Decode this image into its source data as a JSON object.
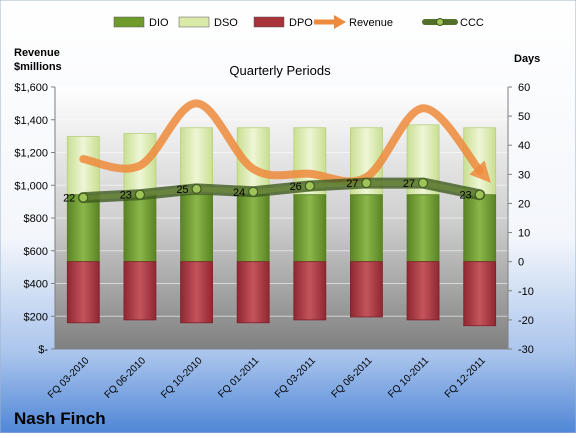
{
  "chart_data": {
    "type": "bar",
    "title": "Quarterly Periods",
    "company": "Nash Finch",
    "left_axis_label": [
      "Revenue",
      "$millions"
    ],
    "right_axis_label": "Days",
    "categories": [
      "FQ 03-2010",
      "FQ 06-2010",
      "FQ 10-2010",
      "FQ 01-2011",
      "FQ 03-2011",
      "FQ 06-2011",
      "FQ 10-2011",
      "FQ 12-2011"
    ],
    "left_axis": {
      "min": 0,
      "max": 1600,
      "step": 200,
      "tick_labels": [
        "$-",
        "$200",
        "$400",
        "$600",
        "$800",
        "$1,000",
        "$1,200",
        "$1,400",
        "$1,600"
      ]
    },
    "right_axis": {
      "min": -30,
      "max": 60,
      "step": 10,
      "tick_labels": [
        "-30",
        "-20",
        "-10",
        "0",
        "10",
        "20",
        "30",
        "40",
        "50",
        "60"
      ]
    },
    "legend_position": "top",
    "legend": [
      {
        "name": "DIO",
        "kind": "bar",
        "color": "#6f9b2d"
      },
      {
        "name": "DSO",
        "kind": "bar",
        "color": "#d9eaa8"
      },
      {
        "name": "DPO",
        "kind": "bar",
        "color": "#a8323a"
      },
      {
        "name": "Revenue",
        "kind": "arrow",
        "color": "#ee8a3c"
      },
      {
        "name": "CCC",
        "kind": "line",
        "color": "#53702a"
      }
    ],
    "series": [
      {
        "name": "DIO",
        "axis": "days",
        "values": [
          23,
          23,
          23,
          23,
          23,
          23,
          23,
          23
        ]
      },
      {
        "name": "DSO",
        "axis": "days",
        "values": [
          20,
          21,
          23,
          23,
          23,
          23,
          24,
          23
        ]
      },
      {
        "name": "DPO",
        "axis": "days",
        "values": [
          -21,
          -20,
          -21,
          -21,
          -20,
          -19,
          -20,
          -22
        ]
      },
      {
        "name": "Revenue",
        "axis": "revenue",
        "values": [
          1160,
          1120,
          1500,
          1100,
          1070,
          1050,
          1470,
          1090
        ]
      },
      {
        "name": "CCC",
        "axis": "days",
        "values": [
          22,
          23,
          25,
          24,
          26,
          27,
          27,
          23
        ],
        "data_labels": [
          "22",
          "23",
          "25",
          "24",
          "26",
          "27",
          "27",
          "23"
        ]
      }
    ],
    "colors": {
      "bg_top": "#ffffff",
      "bg_bottom": "#4f86d6",
      "plot_top": "#ffffff",
      "plot_bottom": "#7f7f7f"
    }
  }
}
